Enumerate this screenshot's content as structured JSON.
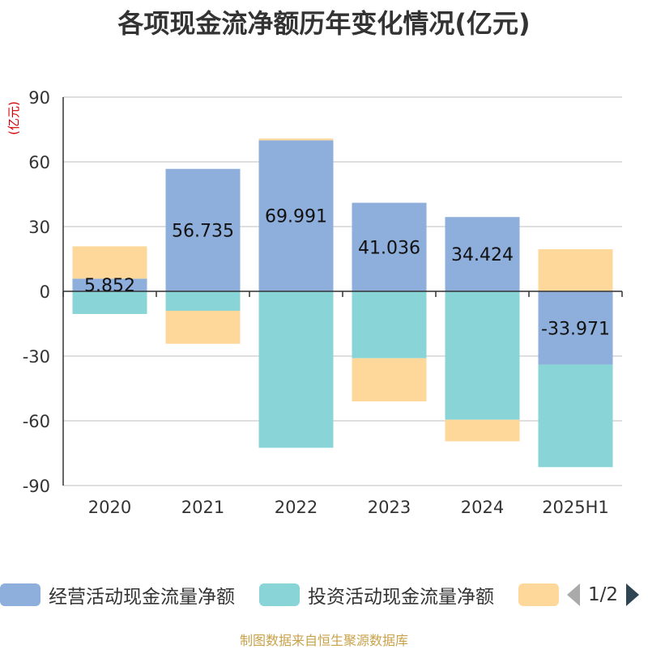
{
  "title": "各项现金流净额历年变化情况(亿元)",
  "footer": "制图数据来自恒生聚源数据库",
  "legend": {
    "items": [
      {
        "label": "经营活动现金流量净额",
        "color": "#8eaedb"
      },
      {
        "label": "投资活动现金流量净额",
        "color": "#88d4d6"
      },
      {
        "label": "",
        "color": "#fdd89a"
      }
    ],
    "page": "1/2"
  },
  "chart_data": {
    "type": "bar",
    "stacked": true,
    "ylabel": "(亿元)",
    "ylim": [
      -90,
      90
    ],
    "yticks": [
      90,
      60,
      30,
      0,
      -30,
      -60,
      -90
    ],
    "ytick_labels": [
      "90",
      "60",
      "30",
      "0",
      "-30",
      "-60",
      "-90"
    ],
    "grid": true,
    "legend_position": "bottom",
    "categories": [
      "2020",
      "2021",
      "2022",
      "2023",
      "2024",
      "2025H1"
    ],
    "series": [
      {
        "name": "经营活动现金流量净额",
        "color": "#8eaedb",
        "values": [
          5.852,
          56.735,
          69.991,
          41.036,
          34.424,
          -33.971
        ],
        "labels": [
          "5.852",
          "56.735",
          "69.991",
          "41.036",
          "34.424",
          "-33.971"
        ]
      },
      {
        "name": "投资活动现金流量净额",
        "color": "#88d4d6",
        "values": [
          -10.5,
          -9.0,
          -72.5,
          -31.0,
          -59.5,
          -47.5
        ]
      },
      {
        "color": "#fdd89a",
        "values": [
          15.0,
          -15.3,
          0.8,
          -20.0,
          -10.0,
          19.5
        ]
      }
    ]
  }
}
